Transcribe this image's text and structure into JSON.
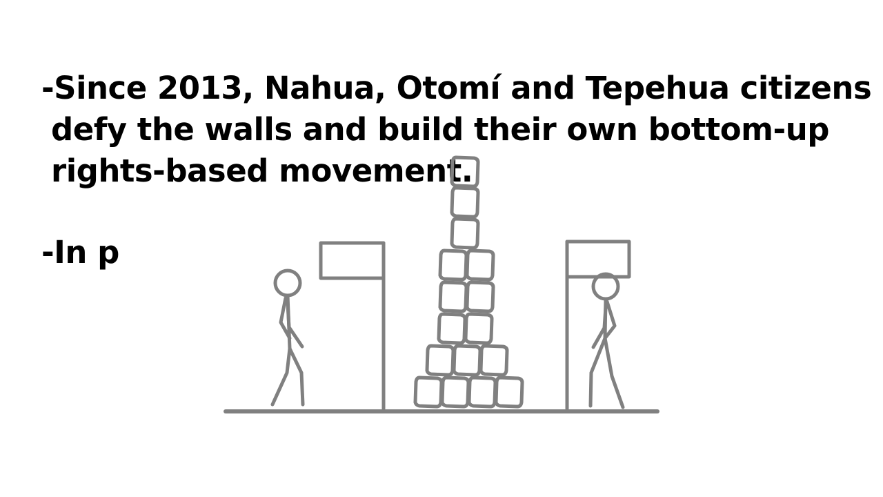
{
  "slide": {
    "bullets": [
      {
        "lines": [
          "-Since 2013, Nahua, Otomí and Tepehua citizens",
          "defy the walls and build their own bottom-up",
          "rights-based movement."
        ]
      },
      {
        "lines": [
          "-In p"
        ]
      }
    ]
  },
  "illustration": {
    "stroke_color": "#808080",
    "figures": [
      "stick-figure-left",
      "stick-figure-right"
    ],
    "walls": [
      "wall-left",
      "wall-right"
    ],
    "block_tower_rows": [
      1,
      1,
      1,
      2,
      2,
      2,
      3,
      4
    ]
  }
}
